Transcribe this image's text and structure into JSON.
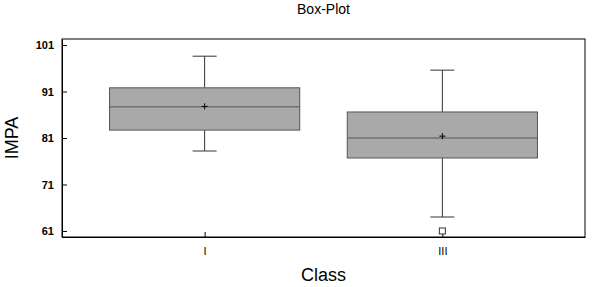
{
  "chart_data": {
    "type": "box",
    "title": "Box-Plot",
    "x_label": "Class",
    "y_label": "IMPA",
    "categories": [
      "I",
      "III"
    ],
    "stats": [
      {
        "min": 78.2,
        "q1": 82.7,
        "median": 87.7,
        "q3": 91.8,
        "max": 98.6,
        "mean": 87.8,
        "outliers": []
      },
      {
        "min": 64.0,
        "q1": 76.7,
        "median": 81.0,
        "q3": 86.6,
        "max": 95.6,
        "mean": 81.4,
        "outliers": [
          61.0
        ]
      }
    ],
    "color": "#a9a9a9",
    "ylim": [
      59.7,
      102.3
    ],
    "yticks": [
      61,
      71,
      81,
      91,
      101
    ],
    "grid": false
  }
}
